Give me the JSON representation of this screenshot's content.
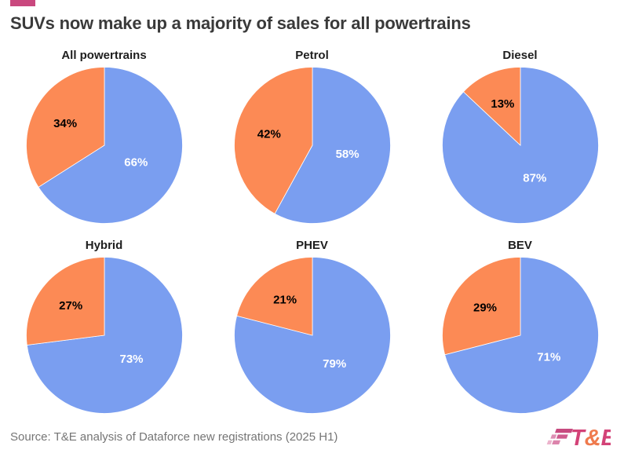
{
  "title": "SUVs now make up a majority of sales for all powertrains",
  "accent_color": "#C9487E",
  "source": "Source: T&E analysis of Dataforce new registrations (2025 H1)",
  "logo": {
    "t": "T",
    "amp": "&",
    "e": "E",
    "pink": "#D34277",
    "orange": "#EF7A4D",
    "stripe_dark": "#C74A7F",
    "stripe_mid": "#CE5B8D",
    "stripe_mid_light": "#DD8FB4",
    "stripe_light": "#DC84AC",
    "stripe_lightest": "#ECB3CC"
  },
  "chart_data": {
    "type": "pie",
    "layout": {
      "rows": 2,
      "cols": 3,
      "legend": "none",
      "label_format": "percent"
    },
    "colors": {
      "suv": "#7A9EF0",
      "non_suv": "#FC8A55",
      "label_on_suv": "#FFFFFF",
      "label_on_non_suv": "#000000"
    },
    "start_angle_deg": 0,
    "direction": "clockwise",
    "charts": [
      {
        "title": "All powertrains",
        "suv_pct": 66,
        "non_suv_pct": 34
      },
      {
        "title": "Petrol",
        "suv_pct": 58,
        "non_suv_pct": 42
      },
      {
        "title": "Diesel",
        "suv_pct": 87,
        "non_suv_pct": 13
      },
      {
        "title": "Hybrid",
        "suv_pct": 73,
        "non_suv_pct": 27
      },
      {
        "title": "PHEV",
        "suv_pct": 79,
        "non_suv_pct": 21
      },
      {
        "title": "BEV",
        "suv_pct": 71,
        "non_suv_pct": 29
      }
    ]
  }
}
